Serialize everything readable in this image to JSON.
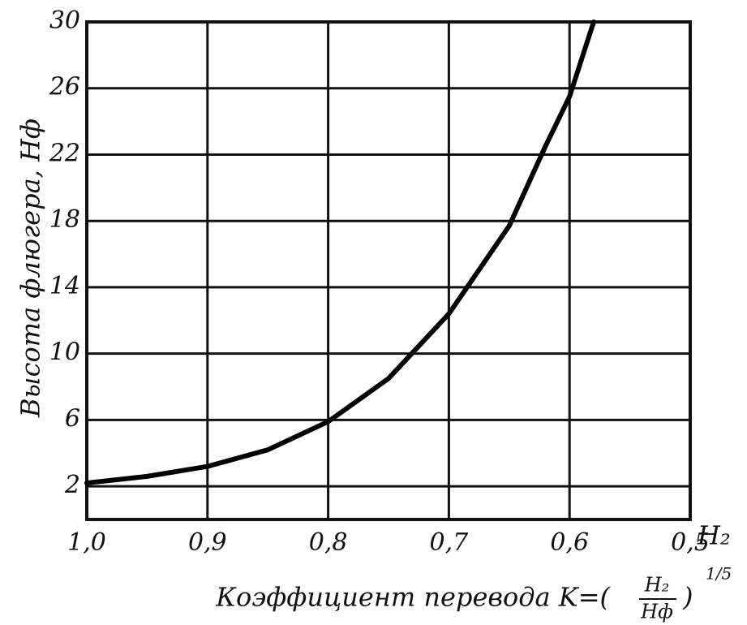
{
  "chart_data": {
    "type": "line",
    "ylabel": "Высота  флюгера, Hф",
    "xlabel": "Коэффициент перевода K=(",
    "xlabel_numerator": "H₂",
    "xlabel_denominator": "Hф",
    "xlabel_close": ")",
    "xlabel_exponent": "1/5",
    "x_end_label": "H₂",
    "x": [
      1.0,
      0.95,
      0.9,
      0.85,
      0.8,
      0.75,
      0.7,
      0.65,
      0.62,
      0.6,
      0.58
    ],
    "values": [
      2.2,
      2.6,
      3.2,
      4.2,
      5.9,
      8.5,
      12.4,
      17.7,
      22.5,
      25.5,
      30
    ],
    "color": "#000000",
    "xlim": [
      1.0,
      0.5
    ],
    "xticks": [
      {
        "value": 1.0,
        "label": "1,0"
      },
      {
        "value": 0.9,
        "label": "0,9"
      },
      {
        "value": 0.8,
        "label": "0,8"
      },
      {
        "value": 0.7,
        "label": "0,7"
      },
      {
        "value": 0.6,
        "label": "0,6"
      },
      {
        "value": 0.5,
        "label": "0,5"
      }
    ],
    "ylim": [
      0,
      30
    ],
    "yticks": [
      2,
      6,
      10,
      14,
      18,
      22,
      26,
      30
    ],
    "grid": true
  }
}
